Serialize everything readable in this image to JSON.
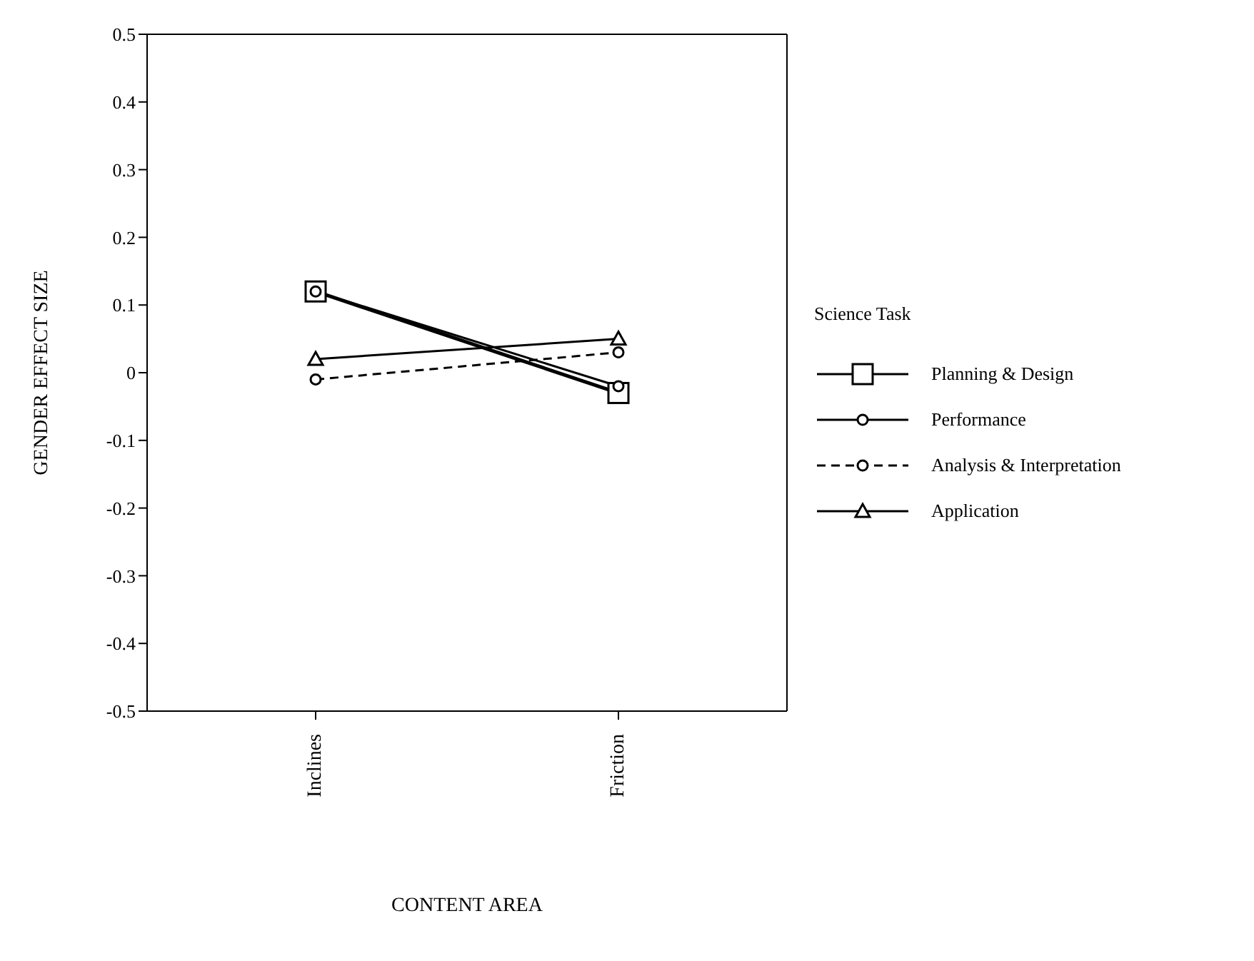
{
  "chart_data": {
    "type": "line",
    "xlabel": "CONTENT AREA",
    "ylabel": "GENDER EFFECT SIZE",
    "legend_title": "Science Task",
    "legend": "right",
    "categories": [
      "Inclines",
      "Friction"
    ],
    "ylim": [
      -0.5,
      0.5
    ],
    "yticks": [
      -0.5,
      -0.4,
      -0.3,
      -0.2,
      -0.1,
      0,
      0.1,
      0.2,
      0.3,
      0.4,
      0.5
    ],
    "series": [
      {
        "name": "Planning & Design",
        "color": "#000000",
        "marker": "square",
        "line_style": "solid",
        "values": [
          0.12,
          -0.03
        ]
      },
      {
        "name": "Performance",
        "color": "#000000",
        "marker": "circle",
        "line_style": "solid",
        "values": [
          0.12,
          -0.02
        ]
      },
      {
        "name": "Analysis & Interpretation",
        "color": "#000000",
        "marker": "circle",
        "line_style": "dashed",
        "values": [
          -0.01,
          0.03
        ]
      },
      {
        "name": "Application",
        "color": "#000000",
        "marker": "triangle",
        "line_style": "solid",
        "values": [
          0.02,
          0.05
        ]
      }
    ]
  }
}
